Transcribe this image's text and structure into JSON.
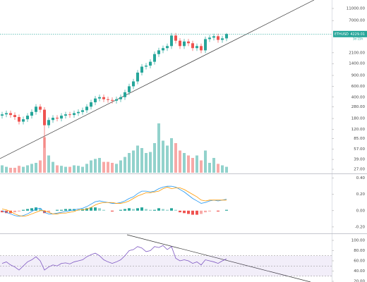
{
  "chart_data": [
    {
      "type": "candlestick",
      "symbol": "ETHUSD",
      "countdown": "3d 15h",
      "log": true,
      "up_color": "#26a69a",
      "down_color": "#ef5350",
      "open": [
        200,
        210,
        220,
        205,
        190,
        160,
        175,
        200,
        230,
        280,
        250,
        140,
        170,
        185,
        180,
        200,
        210,
        205,
        220,
        230,
        245,
        280,
        330,
        380,
        400,
        370,
        360,
        350,
        370,
        400,
        480,
        600,
        720,
        1000,
        1250,
        1300,
        1500,
        2000,
        2300,
        2500,
        2700,
        4000,
        3300,
        2700,
        3200,
        3000,
        2500,
        2700,
        2300,
        3500,
        3700,
        3900,
        3400,
        3600
      ],
      "high": [
        231,
        242,
        242,
        226,
        209,
        193,
        220,
        253,
        308,
        308,
        275,
        187,
        204,
        204,
        220,
        231,
        231,
        242,
        253,
        270,
        308,
        363,
        418,
        440,
        440,
        407,
        396,
        407,
        440,
        528,
        660,
        792,
        1100,
        1375,
        1430,
        1650,
        2200,
        2530,
        2750,
        2970,
        4400,
        4400,
        3630,
        3520,
        3520,
        3300,
        2970,
        2970,
        3850,
        4070,
        4290,
        4290,
        3960,
        4400
      ],
      "low": [
        180,
        189,
        185,
        171,
        144,
        144,
        158,
        180,
        207,
        225,
        60,
        126,
        153,
        162,
        162,
        180,
        185,
        185,
        198,
        207,
        221,
        252,
        297,
        342,
        333,
        324,
        315,
        315,
        333,
        360,
        432,
        540,
        648,
        900,
        1125,
        1170,
        1350,
        1800,
        2070,
        2250,
        2430,
        2970,
        2430,
        2430,
        2700,
        2250,
        2250,
        2070,
        2070,
        3150,
        3330,
        3060,
        3060,
        3240
      ],
      "close": [
        210,
        220,
        205,
        190,
        160,
        175,
        200,
        230,
        280,
        250,
        140,
        170,
        185,
        180,
        200,
        210,
        205,
        220,
        230,
        245,
        280,
        330,
        380,
        400,
        370,
        360,
        350,
        370,
        400,
        480,
        600,
        720,
        1000,
        1250,
        1300,
        1500,
        2000,
        2300,
        2500,
        2700,
        4000,
        3300,
        2700,
        3200,
        3000,
        2500,
        2700,
        2300,
        3500,
        3700,
        3900,
        3400,
        3600,
        4229.01
      ],
      "ylim": [
        23.7,
        15100
      ],
      "yticks": [
        {
          "value": 11000,
          "label": "11000.00"
        },
        {
          "value": 7000,
          "label": "7000.00"
        },
        {
          "value": 2100,
          "label": "2100.00"
        },
        {
          "value": 1400,
          "label": "1400.00"
        },
        {
          "value": 900,
          "label": "900.00"
        },
        {
          "value": 600,
          "label": "600.00"
        },
        {
          "value": 400,
          "label": "400.00"
        },
        {
          "value": 280,
          "label": "280.00"
        },
        {
          "value": 180,
          "label": "180.00"
        },
        {
          "value": 120,
          "label": "120.00"
        },
        {
          "value": 85,
          "label": "85.00"
        },
        {
          "value": 57,
          "label": "57.00"
        },
        {
          "value": 39,
          "label": "39.00"
        },
        {
          "value": 27,
          "label": "27.00"
        }
      ]
    },
    {
      "type": "bar",
      "values": [
        15,
        12,
        10,
        10,
        14,
        12,
        15,
        18,
        20,
        25,
        72,
        35,
        22,
        15,
        14,
        12,
        12,
        15,
        14,
        12,
        18,
        25,
        28,
        30,
        22,
        22,
        20,
        18,
        25,
        32,
        40,
        45,
        55,
        50,
        40,
        42,
        60,
        100,
        65,
        55,
        70,
        60,
        45,
        40,
        35,
        30,
        35,
        25,
        45,
        20,
        30,
        18,
        15,
        12
      ],
      "ylim": [
        0,
        100
      ]
    },
    {
      "type": "combo",
      "values": [
        -0.02,
        -0.03,
        -0.03,
        -0.02,
        -0.01,
        0.01,
        0.02,
        0.03,
        0.04,
        0.03,
        -0.03,
        -0.02,
        0.0,
        0.01,
        0.01,
        0.02,
        0.02,
        0.02,
        0.01,
        0.02,
        0.03,
        0.04,
        0.04,
        0.03,
        0.01,
        0.0,
        -0.01,
        0.0,
        0.01,
        0.02,
        0.03,
        0.02,
        0.03,
        0.04,
        0.02,
        0.01,
        0.01,
        0.03,
        0.02,
        0.01,
        0.03,
        0.01,
        -0.02,
        -0.03,
        -0.04,
        -0.05,
        -0.05,
        -0.04,
        -0.02,
        -0.01,
        0.0,
        -0.01,
        0.0,
        0.01
      ],
      "series": [
        {
          "color": "#2196f3",
          "values": [
            0.0,
            -0.02,
            -0.04,
            -0.06,
            -0.07,
            -0.06,
            -0.04,
            -0.01,
            0.02,
            0.03,
            -0.02,
            -0.04,
            -0.04,
            -0.03,
            -0.02,
            -0.01,
            0.0,
            0.01,
            0.02,
            0.03,
            0.05,
            0.08,
            0.11,
            0.12,
            0.11,
            0.1,
            0.09,
            0.09,
            0.1,
            0.12,
            0.15,
            0.17,
            0.21,
            0.24,
            0.24,
            0.23,
            0.24,
            0.27,
            0.29,
            0.3,
            0.3,
            0.29,
            0.26,
            0.23,
            0.19,
            0.15,
            0.12,
            0.09,
            0.1,
            0.12,
            0.13,
            0.12,
            0.13,
            0.14
          ]
        },
        {
          "color": "#ff9800",
          "values": [
            0.02,
            0.01,
            -0.01,
            -0.04,
            -0.06,
            -0.07,
            -0.06,
            -0.04,
            -0.02,
            0.0,
            0.0,
            -0.02,
            -0.04,
            -0.04,
            -0.03,
            -0.03,
            -0.02,
            -0.01,
            0.01,
            0.01,
            0.02,
            0.04,
            0.07,
            0.09,
            0.1,
            0.1,
            0.1,
            0.09,
            0.09,
            0.1,
            0.12,
            0.15,
            0.18,
            0.2,
            0.22,
            0.22,
            0.23,
            0.24,
            0.27,
            0.29,
            0.27,
            0.28,
            0.28,
            0.26,
            0.23,
            0.2,
            0.17,
            0.13,
            0.12,
            0.13,
            0.13,
            0.13,
            0.13,
            0.13
          ]
        }
      ],
      "ylim": [
        -0.27,
        0.44
      ],
      "yticks": [
        {
          "value": 0.4,
          "label": "0.40"
        },
        {
          "value": 0.2,
          "label": "0.20"
        },
        {
          "value": 0,
          "label": "0.00"
        },
        {
          "value": -0.2,
          "label": "-0.20"
        }
      ]
    },
    {
      "type": "line",
      "color": "#7e57c2",
      "levels": [
        70,
        50,
        30
      ],
      "values": [
        55,
        58,
        52,
        48,
        42,
        50,
        58,
        62,
        68,
        60,
        42,
        48,
        52,
        50,
        55,
        56,
        54,
        58,
        60,
        62,
        68,
        72,
        75,
        70,
        62,
        58,
        55,
        58,
        62,
        70,
        80,
        82,
        88,
        85,
        78,
        80,
        88,
        86,
        90,
        82,
        88,
        65,
        60,
        62,
        60,
        55,
        58,
        52,
        62,
        60,
        58,
        55,
        60,
        64
      ],
      "ylim": [
        18.6,
        112.4
      ],
      "yticks": [
        {
          "value": 100,
          "label": "100.00"
        },
        {
          "value": 80,
          "label": "80.00"
        },
        {
          "value": 60,
          "label": "60.00"
        },
        {
          "value": 40,
          "label": "40.00"
        },
        {
          "value": 20,
          "label": "20.00"
        }
      ]
    }
  ]
}
